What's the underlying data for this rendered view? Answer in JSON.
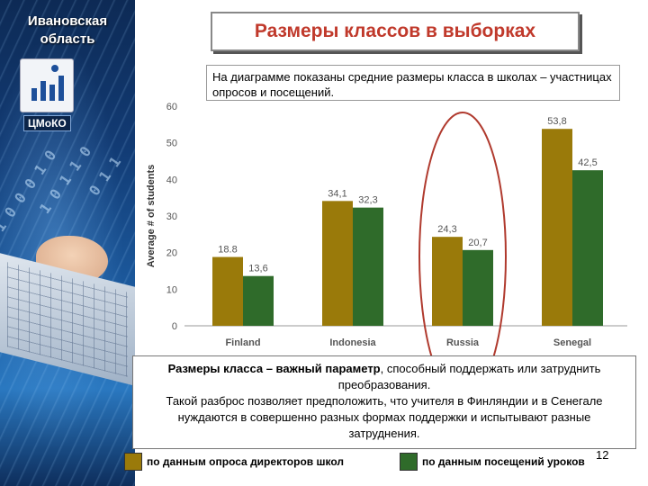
{
  "side": {
    "region": "Ивановская\nобласть",
    "logo_text": "ЦМоКО",
    "binary_1": "1 0 0 0 1 0",
    "binary_2": "1 0 1 1 0",
    "binary_3": "0 1 1"
  },
  "title": "Размеры классов в выборках",
  "description": "На диаграмме показаны  средние размеры класса в школах – участницах опросов и посещений.",
  "chart_data": {
    "type": "bar",
    "ylabel": "Average # of students",
    "ylim": [
      0,
      60
    ],
    "yticks": [
      0,
      10,
      20,
      30,
      40,
      50,
      60
    ],
    "categories": [
      "Finland",
      "Indonesia",
      "Russia",
      "Senegal"
    ],
    "series": [
      {
        "values": [
          18.8,
          34.1,
          24.3,
          53.8
        ],
        "labels": [
          "18.8",
          "34,1",
          "24,3",
          "53,8"
        ],
        "color": "#9a7a0a"
      },
      {
        "values": [
          13.6,
          32.3,
          20.7,
          42.5
        ],
        "labels": [
          "13,6",
          "32,3",
          "20,7",
          "42,5"
        ],
        "color": "#2f6b2a"
      }
    ],
    "highlight": "Russia",
    "highlight_color": "#b03a2e",
    "grid": false
  },
  "note": {
    "bold": "Размеры класса – важный параметр",
    "line1_rest": ", способный поддержать или затруднить преобразования.",
    "line2": "Такой разброс позволяет предположить, что учителя в Финляндии и в Сенегале  нуждаются в совершенно разных формах поддержки и испытывают разные затруднения."
  },
  "page_number": "12",
  "legend": [
    {
      "label": "по  данным опроса директоров школ",
      "color": "#9a7a0a"
    },
    {
      "label": "по  данным посещений уроков",
      "color": "#2f6b2a"
    }
  ]
}
